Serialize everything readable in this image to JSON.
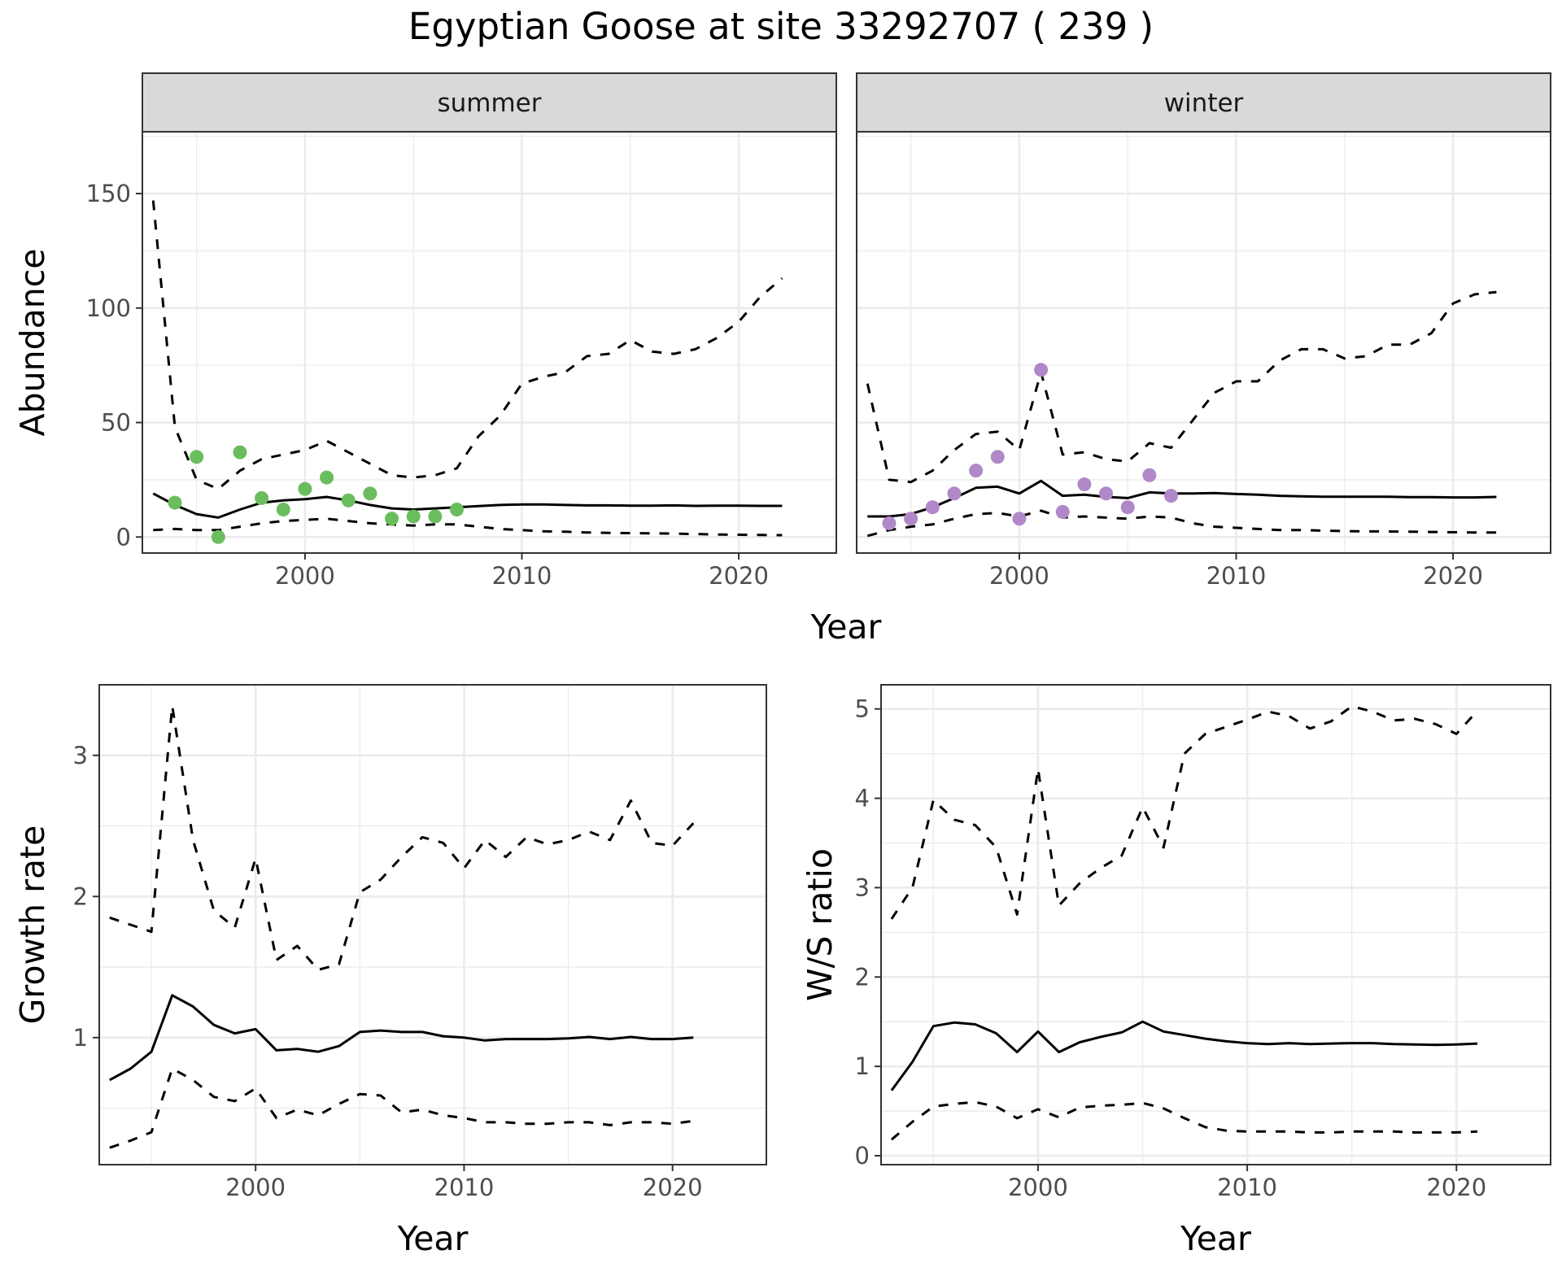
{
  "title": "Egyptian Goose at site 33292707 ( 239 )",
  "colors": {
    "summer_points": "#6abd5c",
    "winter_points": "#b088c8",
    "line": "#000000",
    "strip": "#d9d9d9"
  },
  "chart_data": [
    {
      "type": "line",
      "facet": "summer",
      "xlabel": "Year",
      "ylabel": "Abundance",
      "xlim": [
        1992.5,
        2024.5
      ],
      "ylim": [
        -7,
        177
      ],
      "xticks": [
        2000,
        2010,
        2020
      ],
      "yticks": [
        0,
        50,
        100,
        150
      ],
      "series": [
        {
          "style": "solid",
          "x": [
            1993,
            1994,
            1995,
            1996,
            1997,
            1998,
            1999,
            2000,
            2001,
            2002,
            2003,
            2004,
            2005,
            2006,
            2007,
            2008,
            2009,
            2010,
            2011,
            2012,
            2013,
            2014,
            2015,
            2016,
            2017,
            2018,
            2019,
            2020,
            2021,
            2022
          ],
          "values": [
            19,
            14,
            10,
            8.5,
            12,
            15,
            16,
            16.5,
            17.5,
            16,
            14,
            12.5,
            12,
            12.5,
            13,
            13.5,
            14,
            14.2,
            14.2,
            14,
            13.8,
            13.8,
            13.7,
            13.7,
            13.8,
            13.6,
            13.7,
            13.7,
            13.6,
            13.6
          ]
        },
        {
          "style": "dashed",
          "x": [
            1993,
            1994,
            1995,
            1996,
            1997,
            1998,
            1999,
            2000,
            2001,
            2002,
            2003,
            2004,
            2005,
            2006,
            2007,
            2008,
            2009,
            2010,
            2011,
            2012,
            2013,
            2014,
            2015,
            2016,
            2017,
            2018,
            2019,
            2020,
            2021,
            2022
          ],
          "values": [
            147,
            48,
            25,
            21,
            29,
            34,
            36,
            38,
            42,
            37,
            32,
            27,
            26,
            27,
            30,
            44,
            53,
            67,
            70,
            72,
            79,
            80,
            86,
            81,
            80,
            82,
            87,
            94,
            105,
            113
          ]
        },
        {
          "style": "dashed",
          "x": [
            1993,
            1994,
            1995,
            1996,
            1997,
            1998,
            1999,
            2000,
            2001,
            2002,
            2003,
            2004,
            2005,
            2006,
            2007,
            2008,
            2009,
            2010,
            2011,
            2012,
            2013,
            2014,
            2015,
            2016,
            2017,
            2018,
            2019,
            2020,
            2021,
            2022
          ],
          "values": [
            3,
            3.5,
            3,
            3,
            4.5,
            6,
            7,
            7.5,
            8,
            7,
            6,
            5.5,
            5,
            5.5,
            5.5,
            4.5,
            3.5,
            3,
            2.5,
            2.3,
            2,
            1.8,
            1.7,
            1.6,
            1.5,
            1.3,
            1.1,
            1,
            0.9,
            0.8
          ]
        },
        {
          "style": "points",
          "x": [
            1994,
            1995,
            1996,
            1997,
            1998,
            1999,
            2000,
            2001,
            2002,
            2003,
            2004,
            2005,
            2006,
            2007
          ],
          "values": [
            15,
            35,
            0,
            37,
            17,
            12,
            21,
            26,
            16,
            19,
            8,
            9,
            9,
            12
          ]
        }
      ]
    },
    {
      "type": "line",
      "facet": "winter",
      "xlabel": "Year",
      "xlim": [
        1992.5,
        2024.5
      ],
      "ylim": [
        -7,
        177
      ],
      "xticks": [
        2000,
        2010,
        2020
      ],
      "series": [
        {
          "style": "solid",
          "x": [
            1993,
            1994,
            1995,
            1996,
            1997,
            1998,
            1999,
            2000,
            2001,
            2002,
            2003,
            2004,
            2005,
            2006,
            2007,
            2008,
            2009,
            2010,
            2011,
            2012,
            2013,
            2014,
            2015,
            2016,
            2017,
            2018,
            2019,
            2020,
            2021,
            2022
          ],
          "values": [
            9,
            9,
            10,
            13,
            17,
            21.5,
            22,
            19,
            24.5,
            18,
            18.5,
            17.5,
            17,
            19.5,
            19,
            19,
            19.2,
            18.8,
            18.5,
            18,
            17.8,
            17.6,
            17.6,
            17.6,
            17.6,
            17.4,
            17.4,
            17.3,
            17.3,
            17.5
          ]
        },
        {
          "style": "dashed",
          "x": [
            1993,
            1994,
            1995,
            1996,
            1997,
            1998,
            1999,
            2000,
            2001,
            2002,
            2003,
            2004,
            2005,
            2006,
            2007,
            2008,
            2009,
            2010,
            2011,
            2012,
            2013,
            2014,
            2015,
            2016,
            2017,
            2018,
            2019,
            2020,
            2021,
            2022
          ],
          "values": [
            67,
            25,
            24,
            29,
            38,
            45,
            46,
            38,
            72,
            36,
            37,
            34,
            33,
            41,
            39,
            51,
            63,
            68,
            68,
            77,
            82,
            82,
            78,
            79,
            84,
            84,
            89,
            102,
            106,
            107
          ]
        },
        {
          "style": "dashed",
          "x": [
            1993,
            1994,
            1995,
            1996,
            1997,
            1998,
            1999,
            2000,
            2001,
            2002,
            2003,
            2004,
            2005,
            2006,
            2007,
            2008,
            2009,
            2010,
            2011,
            2012,
            2013,
            2014,
            2015,
            2016,
            2017,
            2018,
            2019,
            2020,
            2021,
            2022
          ],
          "values": [
            0.5,
            3,
            4.5,
            5.5,
            8,
            10,
            10.5,
            9,
            11.5,
            8.5,
            9,
            8.5,
            8,
            9,
            8.5,
            6,
            4.5,
            4,
            3.5,
            3,
            3,
            2.8,
            2.6,
            2.5,
            2.4,
            2.3,
            2.2,
            2.1,
            2,
            2
          ]
        },
        {
          "style": "points",
          "x": [
            1994,
            1995,
            1996,
            1997,
            1998,
            1999,
            2000,
            2001,
            2002,
            2003,
            2004,
            2005,
            2006,
            2007
          ],
          "values": [
            6,
            8,
            13,
            19,
            29,
            35,
            8,
            73,
            11,
            23,
            19,
            13,
            27,
            18
          ]
        }
      ]
    },
    {
      "type": "line",
      "xlabel": "Year",
      "ylabel": "Growth rate",
      "xlim": [
        1992.5,
        2024.5
      ],
      "ylim": [
        0.1,
        3.5
      ],
      "xticks": [
        2000,
        2010,
        2020
      ],
      "yticks": [
        1,
        2,
        3
      ],
      "series": [
        {
          "style": "solid",
          "x": [
            1993,
            1994,
            1995,
            1996,
            1997,
            1998,
            1999,
            2000,
            2001,
            2002,
            2003,
            2004,
            2005,
            2006,
            2007,
            2008,
            2009,
            2010,
            2011,
            2012,
            2013,
            2014,
            2015,
            2016,
            2017,
            2018,
            2019,
            2020,
            2021
          ],
          "values": [
            0.7,
            0.78,
            0.9,
            1.3,
            1.22,
            1.09,
            1.03,
            1.06,
            0.91,
            0.92,
            0.9,
            0.94,
            1.04,
            1.05,
            1.04,
            1.04,
            1.01,
            1.0,
            0.98,
            0.99,
            0.99,
            0.99,
            0.995,
            1.005,
            0.99,
            1.005,
            0.99,
            0.99,
            1.0
          ]
        },
        {
          "style": "dashed",
          "x": [
            1993,
            1994,
            1995,
            1996,
            1997,
            1998,
            1999,
            2000,
            2001,
            2002,
            2003,
            2004,
            2005,
            2006,
            2007,
            2008,
            2009,
            2010,
            2011,
            2012,
            2013,
            2014,
            2015,
            2016,
            2017,
            2018,
            2019,
            2020,
            2021
          ],
          "values": [
            1.85,
            1.8,
            1.75,
            3.35,
            2.4,
            1.9,
            1.78,
            2.27,
            1.55,
            1.65,
            1.48,
            1.52,
            2.03,
            2.12,
            2.28,
            2.42,
            2.38,
            2.2,
            2.4,
            2.28,
            2.42,
            2.37,
            2.4,
            2.46,
            2.4,
            2.68,
            2.38,
            2.36,
            2.52
          ]
        },
        {
          "style": "dashed",
          "x": [
            1993,
            1994,
            1995,
            1996,
            1997,
            1998,
            1999,
            2000,
            2001,
            2002,
            2003,
            2004,
            2005,
            2006,
            2007,
            2008,
            2009,
            2010,
            2011,
            2012,
            2013,
            2014,
            2015,
            2016,
            2017,
            2018,
            2019,
            2020,
            2021
          ],
          "values": [
            0.22,
            0.27,
            0.33,
            0.78,
            0.7,
            0.58,
            0.55,
            0.64,
            0.43,
            0.49,
            0.45,
            0.53,
            0.6,
            0.59,
            0.47,
            0.49,
            0.45,
            0.43,
            0.4,
            0.4,
            0.39,
            0.39,
            0.4,
            0.4,
            0.38,
            0.4,
            0.4,
            0.39,
            0.41
          ]
        }
      ]
    },
    {
      "type": "line",
      "xlabel": "Year",
      "ylabel": "W/S ratio",
      "xlim": [
        1992.5,
        2024.5
      ],
      "ylim": [
        -0.1,
        5.27
      ],
      "xticks": [
        2000,
        2010,
        2020
      ],
      "yticks": [
        0,
        1,
        2,
        3,
        4,
        5
      ],
      "series": [
        {
          "style": "solid",
          "x": [
            1993,
            1994,
            1995,
            1996,
            1997,
            1998,
            1999,
            2000,
            2001,
            2002,
            2003,
            2004,
            2005,
            2006,
            2007,
            2008,
            2009,
            2010,
            2011,
            2012,
            2013,
            2014,
            2015,
            2016,
            2017,
            2018,
            2019,
            2020,
            2021
          ],
          "values": [
            0.73,
            1.05,
            1.45,
            1.49,
            1.47,
            1.37,
            1.16,
            1.39,
            1.16,
            1.27,
            1.33,
            1.38,
            1.5,
            1.39,
            1.35,
            1.31,
            1.28,
            1.26,
            1.25,
            1.26,
            1.25,
            1.255,
            1.26,
            1.26,
            1.25,
            1.245,
            1.24,
            1.245,
            1.255
          ]
        },
        {
          "style": "dashed",
          "x": [
            1993,
            1994,
            1995,
            1996,
            1997,
            1998,
            1999,
            2000,
            2001,
            2002,
            2003,
            2004,
            2005,
            2006,
            2007,
            2008,
            2009,
            2010,
            2011,
            2012,
            2013,
            2014,
            2015,
            2016,
            2017,
            2018,
            2019,
            2020,
            2021
          ],
          "values": [
            2.65,
            3.0,
            3.98,
            3.76,
            3.7,
            3.45,
            2.7,
            4.33,
            2.8,
            3.05,
            3.22,
            3.36,
            3.9,
            3.45,
            4.5,
            4.72,
            4.8,
            4.88,
            4.97,
            4.92,
            4.78,
            4.86,
            5.03,
            4.97,
            4.87,
            4.89,
            4.83,
            4.72,
            4.98
          ]
        },
        {
          "style": "dashed",
          "x": [
            1993,
            1994,
            1995,
            1996,
            1997,
            1998,
            1999,
            2000,
            2001,
            2002,
            2003,
            2004,
            2005,
            2006,
            2007,
            2008,
            2009,
            2010,
            2011,
            2012,
            2013,
            2014,
            2015,
            2016,
            2017,
            2018,
            2019,
            2020,
            2021
          ],
          "values": [
            0.18,
            0.38,
            0.55,
            0.58,
            0.6,
            0.55,
            0.42,
            0.52,
            0.43,
            0.54,
            0.56,
            0.57,
            0.59,
            0.53,
            0.42,
            0.32,
            0.28,
            0.27,
            0.27,
            0.27,
            0.26,
            0.26,
            0.27,
            0.27,
            0.27,
            0.26,
            0.26,
            0.26,
            0.27
          ]
        }
      ]
    }
  ]
}
